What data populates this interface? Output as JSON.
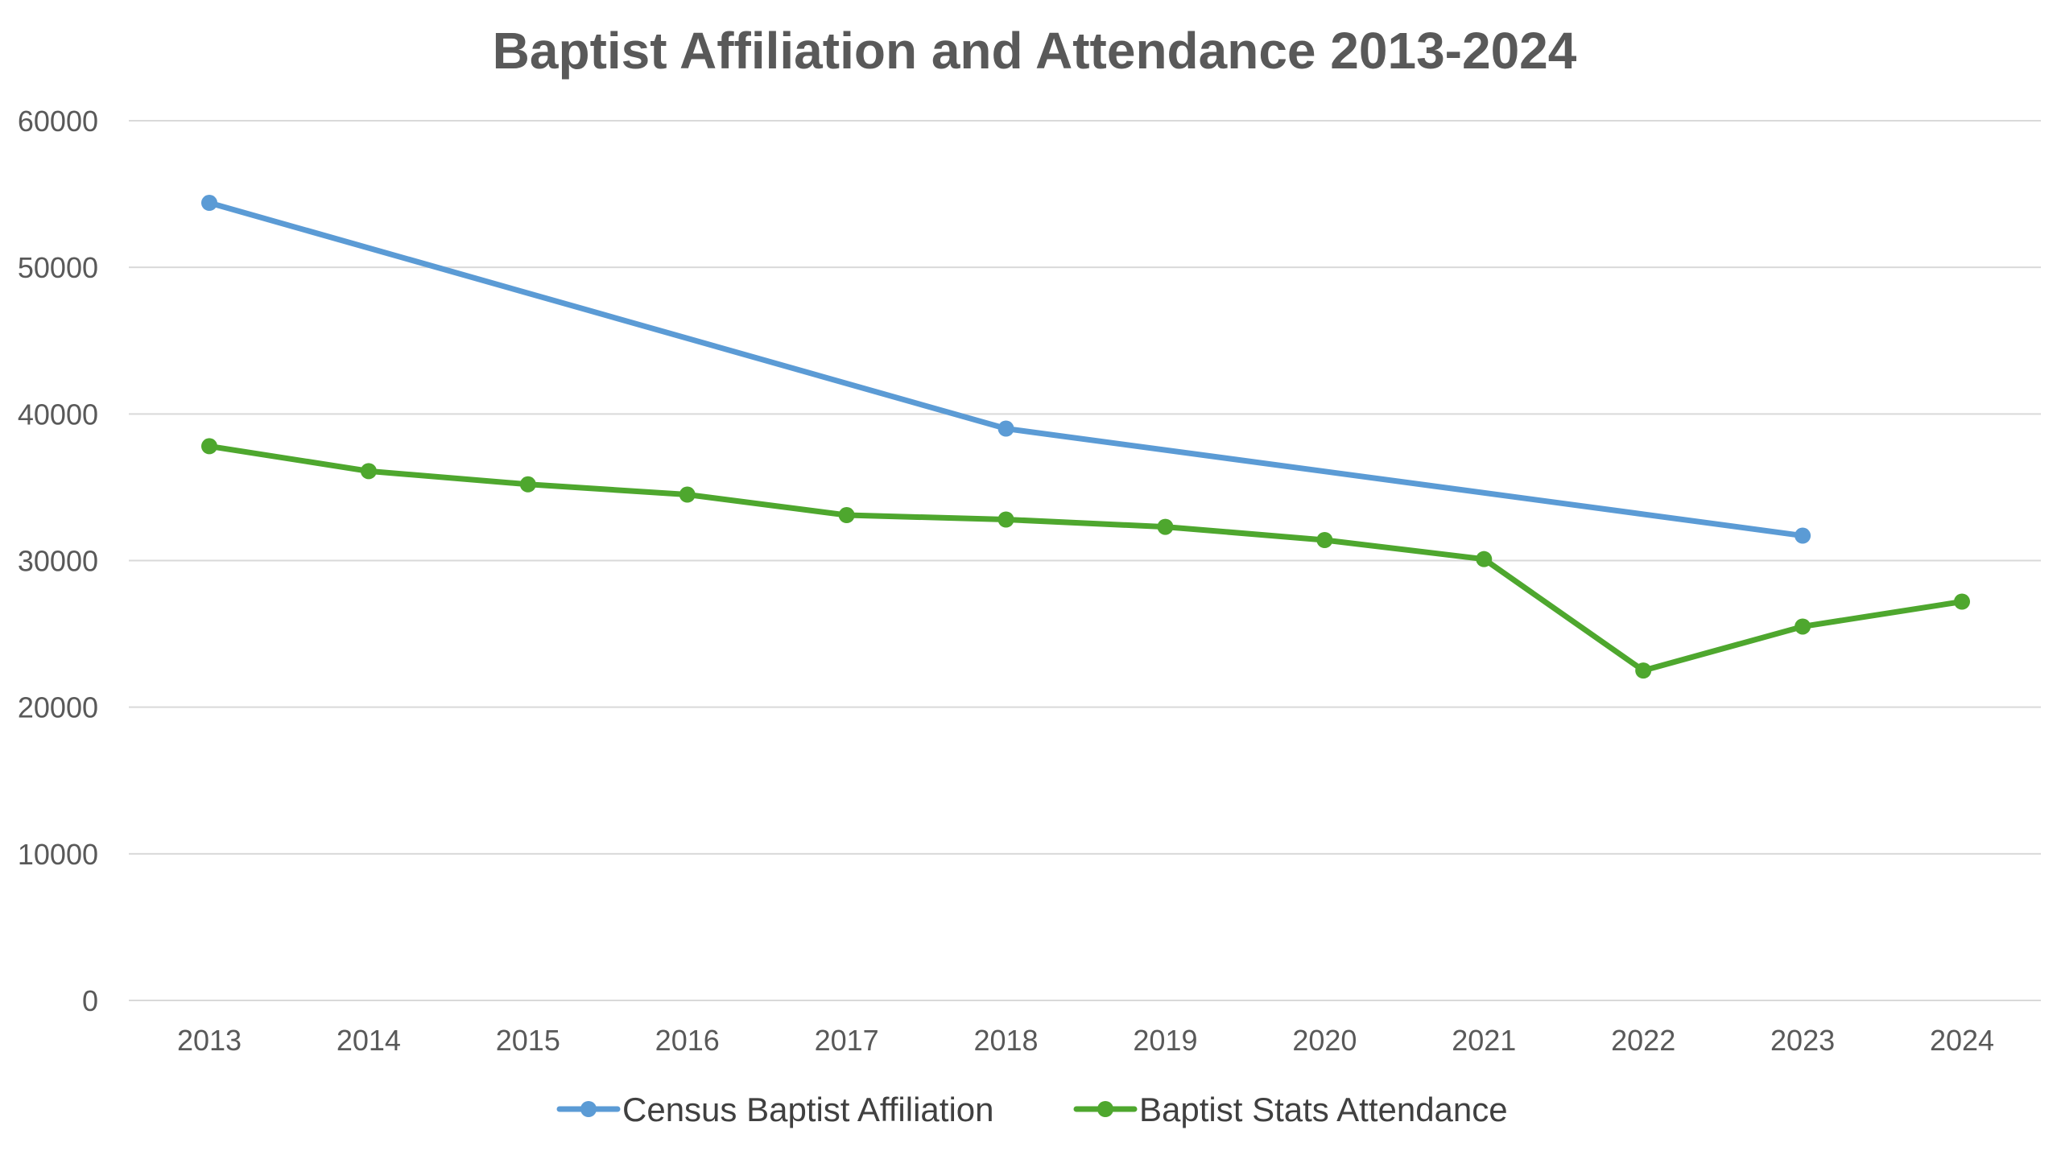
{
  "chart_data": {
    "type": "line",
    "title": "Baptist Affiliation and Attendance 2013-2024",
    "xlabel": "",
    "ylabel": "",
    "categories": [
      "2013",
      "2014",
      "2015",
      "2016",
      "2017",
      "2018",
      "2019",
      "2020",
      "2021",
      "2022",
      "2023",
      "2024"
    ],
    "y_ticks": [
      "0",
      "10000",
      "20000",
      "30000",
      "40000",
      "50000",
      "60000"
    ],
    "ylim": [
      0,
      60000
    ],
    "grid": "horizontal",
    "legend_position": "bottom",
    "series": [
      {
        "name": "Census Baptist Affiliation",
        "color": "#5B9BD5",
        "points": [
          {
            "x": "2013",
            "y": 54400
          },
          {
            "x": "2018",
            "y": 39000
          },
          {
            "x": "2023",
            "y": 31700
          }
        ]
      },
      {
        "name": "Baptist Stats Attendance",
        "color": "#4EA72E",
        "points": [
          {
            "x": "2013",
            "y": 37800
          },
          {
            "x": "2014",
            "y": 36100
          },
          {
            "x": "2015",
            "y": 35200
          },
          {
            "x": "2016",
            "y": 34500
          },
          {
            "x": "2017",
            "y": 33100
          },
          {
            "x": "2018",
            "y": 32800
          },
          {
            "x": "2019",
            "y": 32300
          },
          {
            "x": "2020",
            "y": 31400
          },
          {
            "x": "2021",
            "y": 30100
          },
          {
            "x": "2022",
            "y": 22500
          },
          {
            "x": "2023",
            "y": 25500
          },
          {
            "x": "2024",
            "y": 27200
          }
        ]
      }
    ]
  }
}
